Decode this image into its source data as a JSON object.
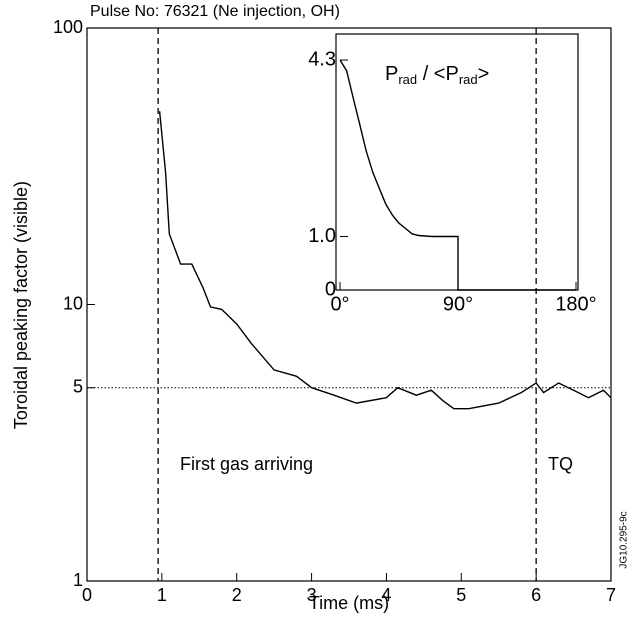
{
  "chart_data": [
    {
      "type": "line",
      "title": "Pulse No: 76321 (Ne injection, OH)",
      "x_label": "Time (ms)",
      "y_label": "Toroidal peaking factor (visible)",
      "x": [
        0.97,
        1.05,
        1.1,
        1.25,
        1.4,
        1.55,
        1.65,
        1.8,
        2.0,
        2.2,
        2.5,
        2.8,
        3.0,
        3.3,
        3.6,
        4.0,
        4.15,
        4.4,
        4.6,
        4.75,
        4.9,
        5.1,
        5.5,
        5.8,
        6.0,
        6.1,
        6.3,
        6.5,
        6.7,
        6.9,
        7.0
      ],
      "values": [
        50,
        30,
        18,
        14,
        14,
        11.5,
        9.8,
        9.6,
        8.5,
        7.2,
        5.8,
        5.5,
        5.0,
        4.7,
        4.4,
        4.6,
        5.0,
        4.7,
        4.9,
        4.5,
        4.2,
        4.2,
        4.4,
        4.8,
        5.2,
        4.8,
        5.2,
        4.9,
        4.6,
        4.9,
        4.6
      ],
      "color": "#000000",
      "log_y": true,
      "xlim": [
        0,
        7
      ],
      "xticks": [
        0,
        1,
        2,
        3,
        4,
        5,
        6,
        7
      ],
      "ylim": [
        1,
        100
      ],
      "yticks": [
        1,
        5,
        10,
        100
      ],
      "hline": 5,
      "vlines": [
        0.95,
        6
      ],
      "annotations": [
        "First gas arriving",
        "TQ"
      ],
      "side_note": "JG10.295-9c"
    },
    {
      "type": "line",
      "title": [
        "P",
        "rad",
        " / <P",
        "rad",
        ">"
      ],
      "x": [
        0,
        5,
        10,
        15,
        20,
        25,
        30,
        35,
        40,
        45,
        50,
        55,
        60,
        70,
        90,
        90,
        180
      ],
      "values": [
        4.3,
        4.1,
        3.6,
        3.1,
        2.6,
        2.2,
        1.9,
        1.6,
        1.4,
        1.25,
        1.15,
        1.05,
        1.02,
        1.0,
        1.0,
        0,
        0
      ],
      "color": "#000000",
      "xlim": [
        0,
        180
      ],
      "xticks": [
        {
          "value": 0,
          "label": "0°"
        },
        {
          "value": 90,
          "label": "90°"
        },
        {
          "value": 180,
          "label": "180°"
        }
      ],
      "ylim": [
        0,
        4.6
      ],
      "yticks": [
        0,
        {
          "value": 1,
          "label": "1.0"
        },
        4.3
      ]
    }
  ]
}
